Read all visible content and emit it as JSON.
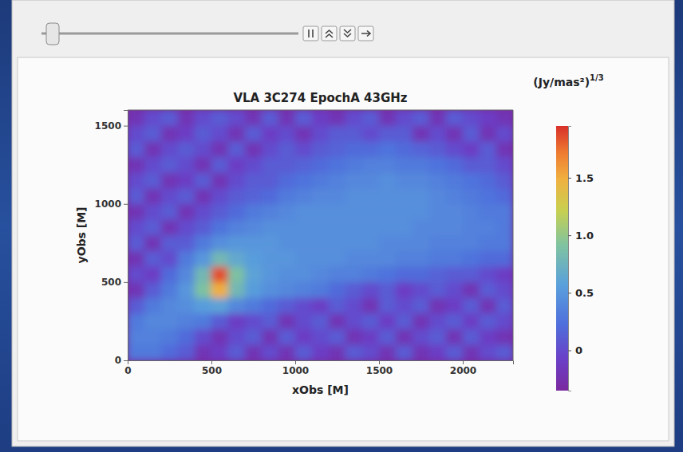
{
  "chart_data": {
    "type": "heatmap",
    "title": "VLA 3C274 EpochA 43GHz",
    "x_label": "xObs [M]",
    "y_label": "yObs [M]",
    "xlim": [
      0,
      2300
    ],
    "ylim": [
      0,
      1600
    ],
    "xticks": [
      0,
      500,
      1000,
      1500,
      2000
    ],
    "yticks": [
      0,
      500,
      1000,
      1500
    ],
    "x": [
      50,
      150,
      250,
      350,
      450,
      550,
      650,
      750,
      850,
      950,
      1050,
      1150,
      1250,
      1350,
      1450,
      1550,
      1650,
      1750,
      1850,
      1950,
      2050,
      2150,
      2250
    ],
    "y": [
      50,
      150,
      250,
      350,
      450,
      550,
      650,
      750,
      850,
      950,
      1050,
      1150,
      1250,
      1350,
      1450,
      1550
    ],
    "z": [
      [
        0.3,
        0.3,
        0.2,
        0.1,
        -0.2,
        -0.1,
        0.1,
        -0.2,
        0.0,
        -0.2,
        0.1,
        -0.1,
        -0.2,
        0.1,
        0.0,
        -0.2,
        0.1,
        -0.2,
        -0.1,
        0.1,
        -0.2,
        0.0,
        0.1
      ],
      [
        0.35,
        0.35,
        0.3,
        0.2,
        0.0,
        -0.2,
        0.0,
        0.1,
        -0.2,
        0.1,
        -0.1,
        0.0,
        0.1,
        -0.2,
        -0.1,
        0.1,
        -0.2,
        0.0,
        0.1,
        -0.2,
        0.1,
        -0.1,
        -0.2
      ],
      [
        0.3,
        0.4,
        0.4,
        0.35,
        0.3,
        0.1,
        -0.1,
        0.0,
        0.1,
        -0.2,
        0.0,
        0.1,
        -0.2,
        0.0,
        0.1,
        -0.1,
        0.1,
        -0.2,
        0.0,
        0.1,
        -0.1,
        0.1,
        0.0
      ],
      [
        0.1,
        0.3,
        0.4,
        0.45,
        0.55,
        0.6,
        0.4,
        0.3,
        0.2,
        0.1,
        0.0,
        -0.1,
        0.1,
        0.0,
        -0.2,
        0.1,
        0.0,
        0.1,
        -0.2,
        -0.1,
        0.1,
        -0.2,
        0.1
      ],
      [
        -0.2,
        0.1,
        0.3,
        0.5,
        0.9,
        1.5,
        0.8,
        0.55,
        0.45,
        0.4,
        0.35,
        0.3,
        0.2,
        0.1,
        0.0,
        0.1,
        -0.1,
        0.0,
        0.1,
        0.0,
        -0.2,
        0.1,
        0.0
      ],
      [
        0.0,
        -0.1,
        0.2,
        0.4,
        0.8,
        1.85,
        0.9,
        0.6,
        0.5,
        0.45,
        0.45,
        0.4,
        0.35,
        0.35,
        0.3,
        0.25,
        0.2,
        0.2,
        0.15,
        0.1,
        0.1,
        0.0,
        -0.1
      ],
      [
        -0.2,
        0.1,
        0.0,
        0.3,
        0.5,
        0.8,
        0.65,
        0.55,
        0.5,
        0.5,
        0.45,
        0.45,
        0.45,
        0.4,
        0.4,
        0.4,
        0.35,
        0.35,
        0.3,
        0.3,
        0.25,
        0.2,
        0.2
      ],
      [
        0.1,
        -0.2,
        0.1,
        0.1,
        0.3,
        0.45,
        0.5,
        0.5,
        0.5,
        0.45,
        0.45,
        0.45,
        0.45,
        0.45,
        0.45,
        0.4,
        0.4,
        0.4,
        0.35,
        0.35,
        0.35,
        0.3,
        0.3
      ],
      [
        0.0,
        0.1,
        -0.2,
        0.0,
        0.1,
        0.25,
        0.35,
        0.4,
        0.45,
        0.45,
        0.45,
        0.45,
        0.45,
        0.45,
        0.45,
        0.45,
        0.45,
        0.4,
        0.4,
        0.4,
        0.35,
        0.35,
        0.3
      ],
      [
        -0.2,
        0.0,
        0.1,
        -0.2,
        0.0,
        0.1,
        0.2,
        0.3,
        0.35,
        0.4,
        0.45,
        0.45,
        0.45,
        0.45,
        0.45,
        0.45,
        0.45,
        0.45,
        0.4,
        0.4,
        0.35,
        0.3,
        0.3
      ],
      [
        0.1,
        -0.2,
        0.0,
        0.1,
        -0.2,
        0.0,
        0.1,
        0.15,
        0.2,
        0.3,
        0.35,
        0.4,
        0.4,
        0.45,
        0.45,
        0.45,
        0.45,
        0.45,
        0.4,
        0.35,
        0.3,
        0.25,
        0.2
      ],
      [
        0.0,
        0.1,
        -0.2,
        -0.1,
        0.1,
        -0.2,
        0.0,
        0.1,
        0.1,
        0.2,
        0.25,
        0.3,
        0.35,
        0.4,
        0.4,
        0.45,
        0.4,
        0.4,
        0.35,
        0.3,
        0.25,
        0.2,
        0.1
      ],
      [
        -0.2,
        0.0,
        0.1,
        0.0,
        -0.2,
        0.1,
        -0.1,
        0.0,
        0.1,
        0.1,
        0.15,
        0.2,
        0.25,
        0.3,
        0.35,
        0.35,
        0.3,
        0.3,
        0.25,
        0.2,
        0.1,
        0.1,
        0.0
      ],
      [
        0.1,
        -0.2,
        0.0,
        0.1,
        0.0,
        -0.2,
        0.1,
        -0.2,
        0.0,
        0.1,
        0.0,
        0.1,
        0.15,
        0.2,
        0.2,
        0.25,
        0.2,
        0.15,
        0.1,
        0.0,
        -0.1,
        0.1,
        -0.2
      ],
      [
        0.0,
        0.1,
        -0.2,
        -0.1,
        0.1,
        0.0,
        -0.2,
        0.1,
        -0.1,
        0.0,
        -0.2,
        0.0,
        0.1,
        0.1,
        0.0,
        0.1,
        0.1,
        -0.2,
        0.0,
        -0.2,
        0.1,
        -0.2,
        0.0
      ],
      [
        -0.2,
        0.0,
        0.1,
        -0.2,
        0.0,
        0.1,
        0.0,
        -0.2,
        0.1,
        -0.2,
        0.1,
        -0.1,
        -0.2,
        0.0,
        0.1,
        -0.2,
        0.0,
        0.1,
        -0.2,
        0.1,
        0.0,
        -0.1,
        -0.2
      ]
    ],
    "colorbar": {
      "label": "(Jy/mas²)",
      "label_power": "1/3",
      "range": [
        -0.35,
        1.95
      ],
      "ticks": [
        0,
        0.5,
        {
          "value": 1,
          "label": "1.0"
        },
        1.5
      ]
    }
  }
}
